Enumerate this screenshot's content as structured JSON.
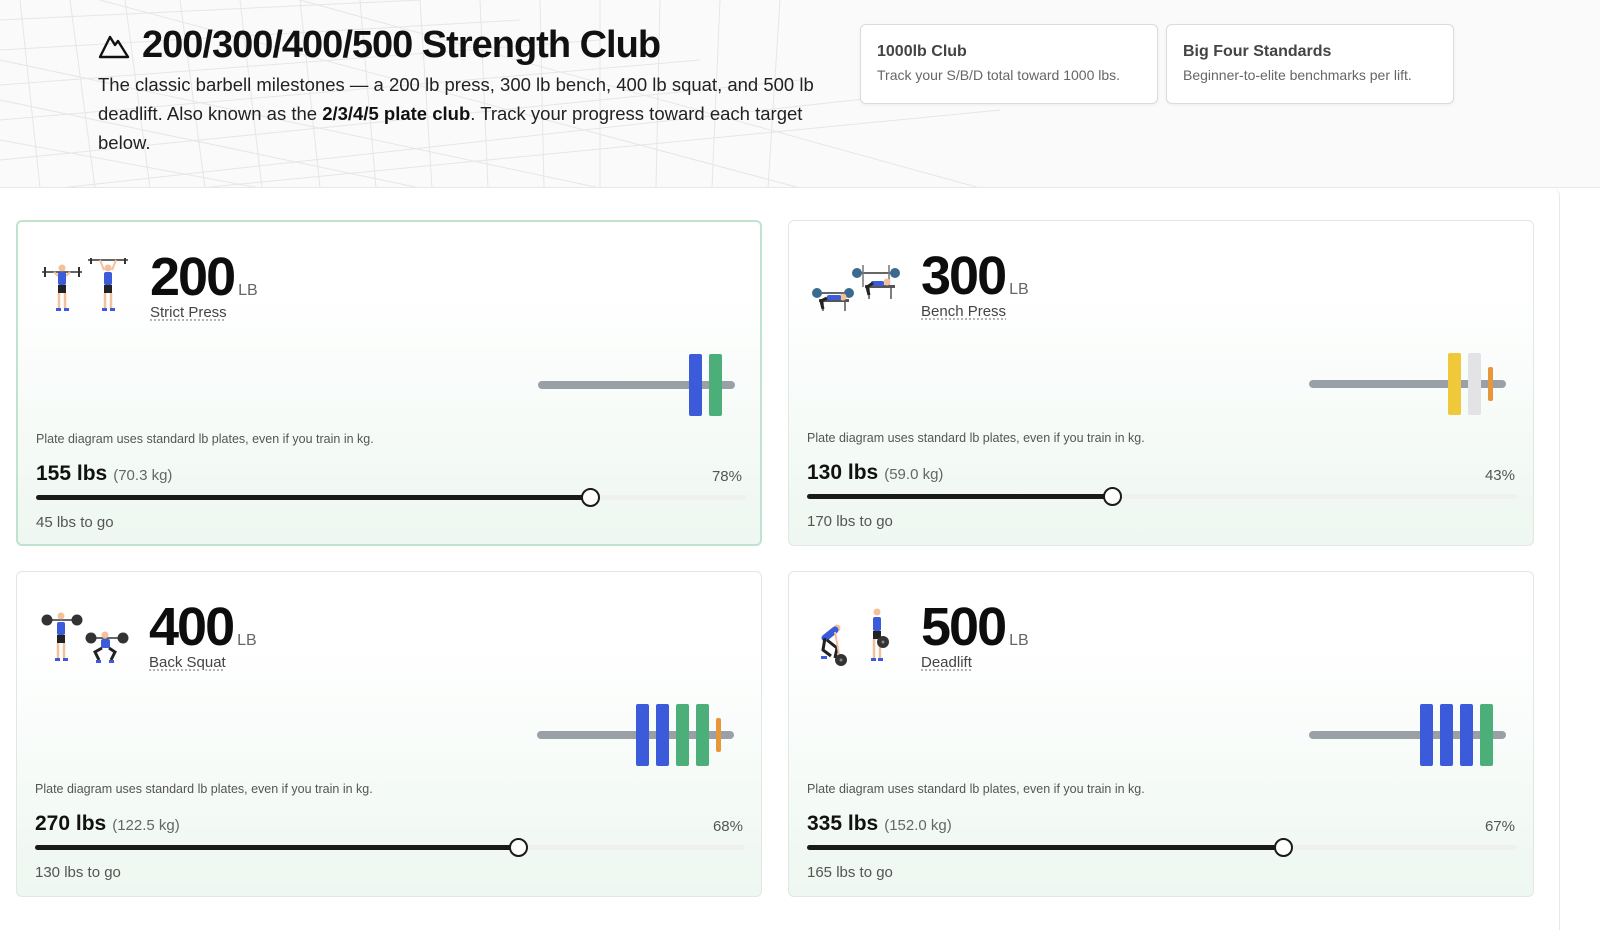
{
  "header": {
    "title": "200/300/400/500 Strength Club",
    "desc_part1": "The classic barbell milestones — a 200 lb press, 300 lb bench, 400 lb squat, and 500 lb deadlift. Also known as the ",
    "desc_bold": "2/3/4/5 plate club",
    "desc_part2": ". Track your progress toward each target below.",
    "icon": "mountain-icon"
  },
  "links": [
    {
      "title": "1000lb Club",
      "desc": "Track your S/B/D total toward 1000 lbs."
    },
    {
      "title": "Big Four Standards",
      "desc": "Beginner-to-elite benchmarks per lift."
    }
  ],
  "plate_note": "Plate diagram uses standard lb plates, even if you train in kg.",
  "unit_label": "LB",
  "colors": {
    "plate_45": "#3b5bdb",
    "plate_25": "#4caf7a",
    "plate_35": "#f0c93a",
    "plate_10": "#e3e3e6",
    "plate_5": "#e8963a",
    "bar": "#9aa1a6",
    "active_border": "#bfe3cf"
  },
  "lifts": [
    {
      "target": "200",
      "name": "Strict Press",
      "current": "155 lbs",
      "current_kg": "(70.3 kg)",
      "percent": "78%",
      "progress": 0.78,
      "to_go": "45 lbs to go",
      "plates": [
        "45",
        "25"
      ],
      "icon": "press-figure-icon"
    },
    {
      "target": "300",
      "name": "Bench Press",
      "current": "130 lbs",
      "current_kg": "(59.0 kg)",
      "percent": "43%",
      "progress": 0.43,
      "to_go": "170 lbs to go",
      "plates": [
        "35",
        "10",
        "5"
      ],
      "icon": "bench-figure-icon"
    },
    {
      "target": "400",
      "name": "Back Squat",
      "current": "270 lbs",
      "current_kg": "(122.5 kg)",
      "percent": "68%",
      "progress": 0.68,
      "to_go": "130 lbs to go",
      "plates": [
        "45",
        "45",
        "25",
        "25",
        "5"
      ],
      "icon": "squat-figure-icon"
    },
    {
      "target": "500",
      "name": "Deadlift",
      "current": "335 lbs",
      "current_kg": "(152.0 kg)",
      "percent": "67%",
      "progress": 0.67,
      "to_go": "165 lbs to go",
      "plates": [
        "45",
        "45",
        "45",
        "25"
      ],
      "icon": "deadlift-figure-icon"
    }
  ]
}
